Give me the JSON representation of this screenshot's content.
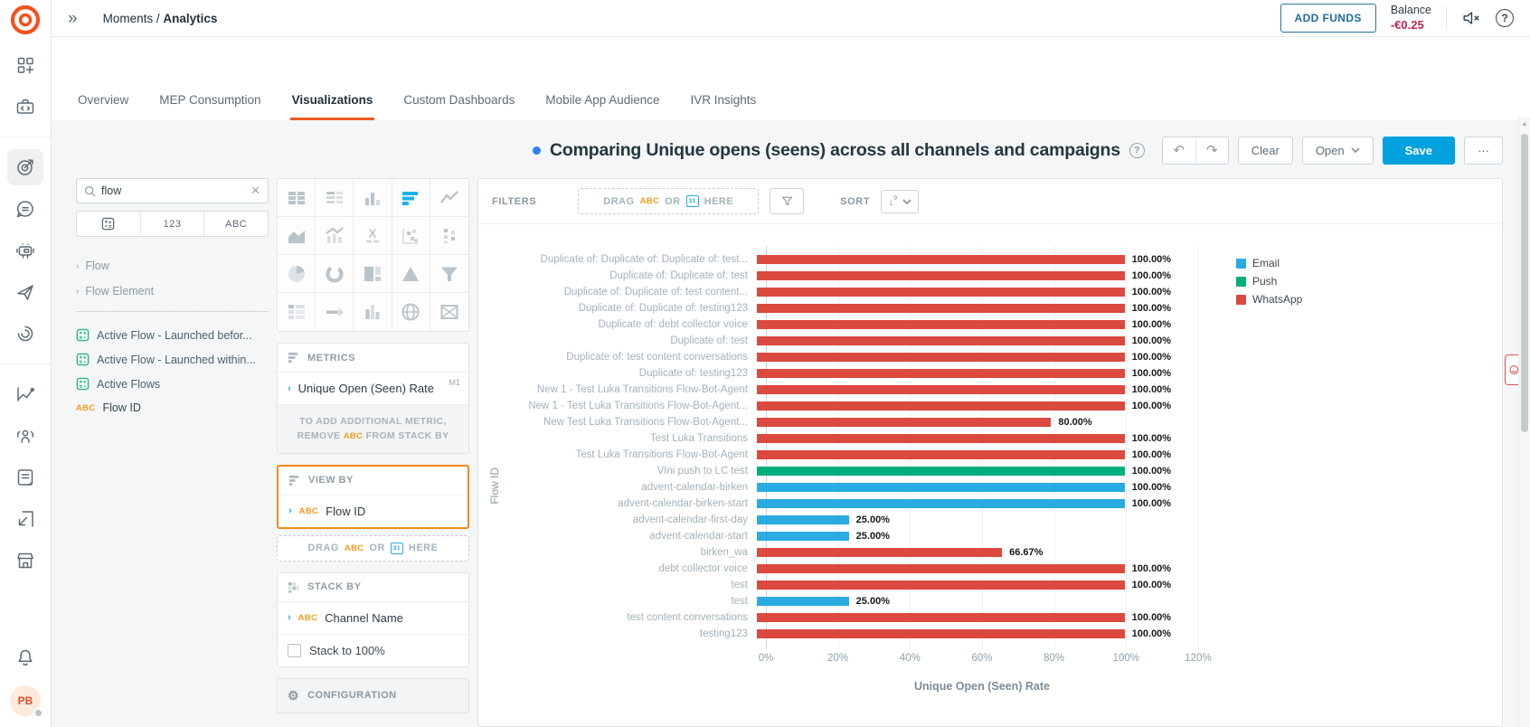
{
  "topbar": {
    "breadcrumb_prefix": "Moments /",
    "breadcrumb_current": "Analytics",
    "add_funds_label": "ADD FUNDS",
    "balance_label": "Balance",
    "balance_value": "-€0.25"
  },
  "rail": {
    "avatar_initials": "PB"
  },
  "tabs": {
    "items": [
      {
        "label": "Overview",
        "active": false
      },
      {
        "label": "MEP Consumption",
        "active": false
      },
      {
        "label": "Visualizations",
        "active": true
      },
      {
        "label": "Custom Dashboards",
        "active": false
      },
      {
        "label": "Mobile App Audience",
        "active": false
      },
      {
        "label": "IVR Insights",
        "active": false
      }
    ]
  },
  "left_panel": {
    "search_value": "flow",
    "segments": {
      "numeric_label": "123",
      "text_label": "ABC"
    },
    "tree_items": [
      {
        "label": "Flow"
      },
      {
        "label": "Flow Element"
      }
    ],
    "fields": [
      {
        "icon": "metric",
        "label": "Active Flow - Launched befor..."
      },
      {
        "icon": "metric",
        "label": "Active Flow - Launched within..."
      },
      {
        "icon": "metric",
        "label": "Active Flows"
      },
      {
        "icon": "abc",
        "label": "Flow ID"
      }
    ]
  },
  "builder": {
    "chart_types": [
      "table",
      "kpi-list",
      "column",
      "horizontal-bar",
      "line",
      "area",
      "combo",
      "text",
      "scatter",
      "dot-plot",
      "pie",
      "donut",
      "treemap",
      "pyramid",
      "funnel",
      "pivot-table",
      "bullet",
      "small-column",
      "map",
      "matrix"
    ],
    "selected_chart": "horizontal-bar",
    "metrics": {
      "header": "METRICS",
      "item": "Unique Open (Seen) Rate",
      "item_badge": "M1",
      "hint_line1": "TO ADD ADDITIONAL METRIC,",
      "hint_remove": "REMOVE",
      "hint_abc": "ABC",
      "hint_rest": "FROM STACK BY"
    },
    "view_by": {
      "header": "VIEW BY",
      "item_icon": "ABC",
      "item": "Flow ID",
      "drop_drag": "DRAG",
      "drop_abc": "ABC",
      "drop_or": "OR",
      "drop_here": "HERE"
    },
    "stack_by": {
      "header": "STACK BY",
      "item_icon": "ABC",
      "item": "Channel Name",
      "stack_checkbox_label": "Stack to 100%"
    },
    "configuration": {
      "header": "CONFIGURATION"
    }
  },
  "chart_header": {
    "title": "Comparing Unique opens (seens) across all channels and campaigns",
    "clear_label": "Clear",
    "open_label": "Open",
    "save_label": "Save",
    "more_label": "···"
  },
  "filters_bar": {
    "filters_label": "FILTERS",
    "drop_drag": "DRAG",
    "drop_abc": "ABC",
    "drop_or": "OR",
    "drop_here": "HERE",
    "sort_label": "SORT"
  },
  "chart_data": {
    "type": "bar",
    "orientation": "horizontal",
    "title": "Comparing Unique opens (seens) across all channels and campaigns",
    "xlabel": "Unique Open (Seen) Rate",
    "ylabel": "Flow ID",
    "xlim": [
      0,
      120
    ],
    "x_ticks": [
      "0%",
      "20%",
      "40%",
      "60%",
      "80%",
      "100%",
      "120%"
    ],
    "grid": true,
    "legend_position": "right",
    "legend": [
      {
        "name": "Email",
        "color": "#29abe2"
      },
      {
        "name": "Push",
        "color": "#00ae7b"
      },
      {
        "name": "WhatsApp",
        "color": "#dc493e"
      }
    ],
    "bars": [
      {
        "label": "Duplicate of: Duplicate of: Duplicate of: test...",
        "value": 100,
        "display": "100.00%",
        "series": "WhatsApp"
      },
      {
        "label": "Duplicate of: Duplicate of: test",
        "value": 100,
        "display": "100.00%",
        "series": "WhatsApp"
      },
      {
        "label": "Duplicate of: Duplicate of: test content...",
        "value": 100,
        "display": "100.00%",
        "series": "WhatsApp"
      },
      {
        "label": "Duplicate of: Duplicate of: testing123",
        "value": 100,
        "display": "100.00%",
        "series": "WhatsApp"
      },
      {
        "label": "Duplicate of: debt collector voice",
        "value": 100,
        "display": "100.00%",
        "series": "WhatsApp"
      },
      {
        "label": "Duplicate of: test",
        "value": 100,
        "display": "100.00%",
        "series": "WhatsApp"
      },
      {
        "label": "Duplicate of: test content conversations",
        "value": 100,
        "display": "100.00%",
        "series": "WhatsApp"
      },
      {
        "label": "Duplicate of: testing123",
        "value": 100,
        "display": "100.00%",
        "series": "WhatsApp"
      },
      {
        "label": "New 1 - Test Luka Transitions Flow-Bot-Agent",
        "value": 100,
        "display": "100.00%",
        "series": "WhatsApp"
      },
      {
        "label": "New 1 - Test Luka Transitions Flow-Bot-Agent...",
        "value": 100,
        "display": "100.00%",
        "series": "WhatsApp"
      },
      {
        "label": "New Test Luka Transitions Flow-Bot-Agent...",
        "value": 80,
        "display": "80.00%",
        "series": "WhatsApp"
      },
      {
        "label": "Test Luka Transitions",
        "value": 100,
        "display": "100.00%",
        "series": "WhatsApp"
      },
      {
        "label": "Test Luka Transitions Flow-Bot-Agent",
        "value": 100,
        "display": "100.00%",
        "series": "WhatsApp"
      },
      {
        "label": "VIni push to LC test",
        "value": 100,
        "display": "100.00%",
        "series": "Push"
      },
      {
        "label": "advent-calendar-birken",
        "value": 100,
        "display": "100.00%",
        "series": "Email"
      },
      {
        "label": "advent-calendar-birken-start",
        "value": 100,
        "display": "100.00%",
        "series": "Email"
      },
      {
        "label": "advent-calendar-first-day",
        "value": 25,
        "display": "25.00%",
        "series": "Email"
      },
      {
        "label": "advent-calendar-start",
        "value": 25,
        "display": "25.00%",
        "series": "Email"
      },
      {
        "label": "birken_wa",
        "value": 66.67,
        "display": "66.67%",
        "series": "WhatsApp"
      },
      {
        "label": "debt collector voice",
        "value": 100,
        "display": "100.00%",
        "series": "WhatsApp"
      },
      {
        "label": "test",
        "value": 100,
        "display": "100.00%",
        "series": "WhatsApp"
      },
      {
        "label": "test",
        "value": 25,
        "display": "25.00%",
        "series": "Email"
      },
      {
        "label": "test content conversations",
        "value": 100,
        "display": "100.00%",
        "series": "WhatsApp"
      },
      {
        "label": "testing123",
        "value": 100,
        "display": "100.00%",
        "series": "WhatsApp"
      }
    ]
  }
}
